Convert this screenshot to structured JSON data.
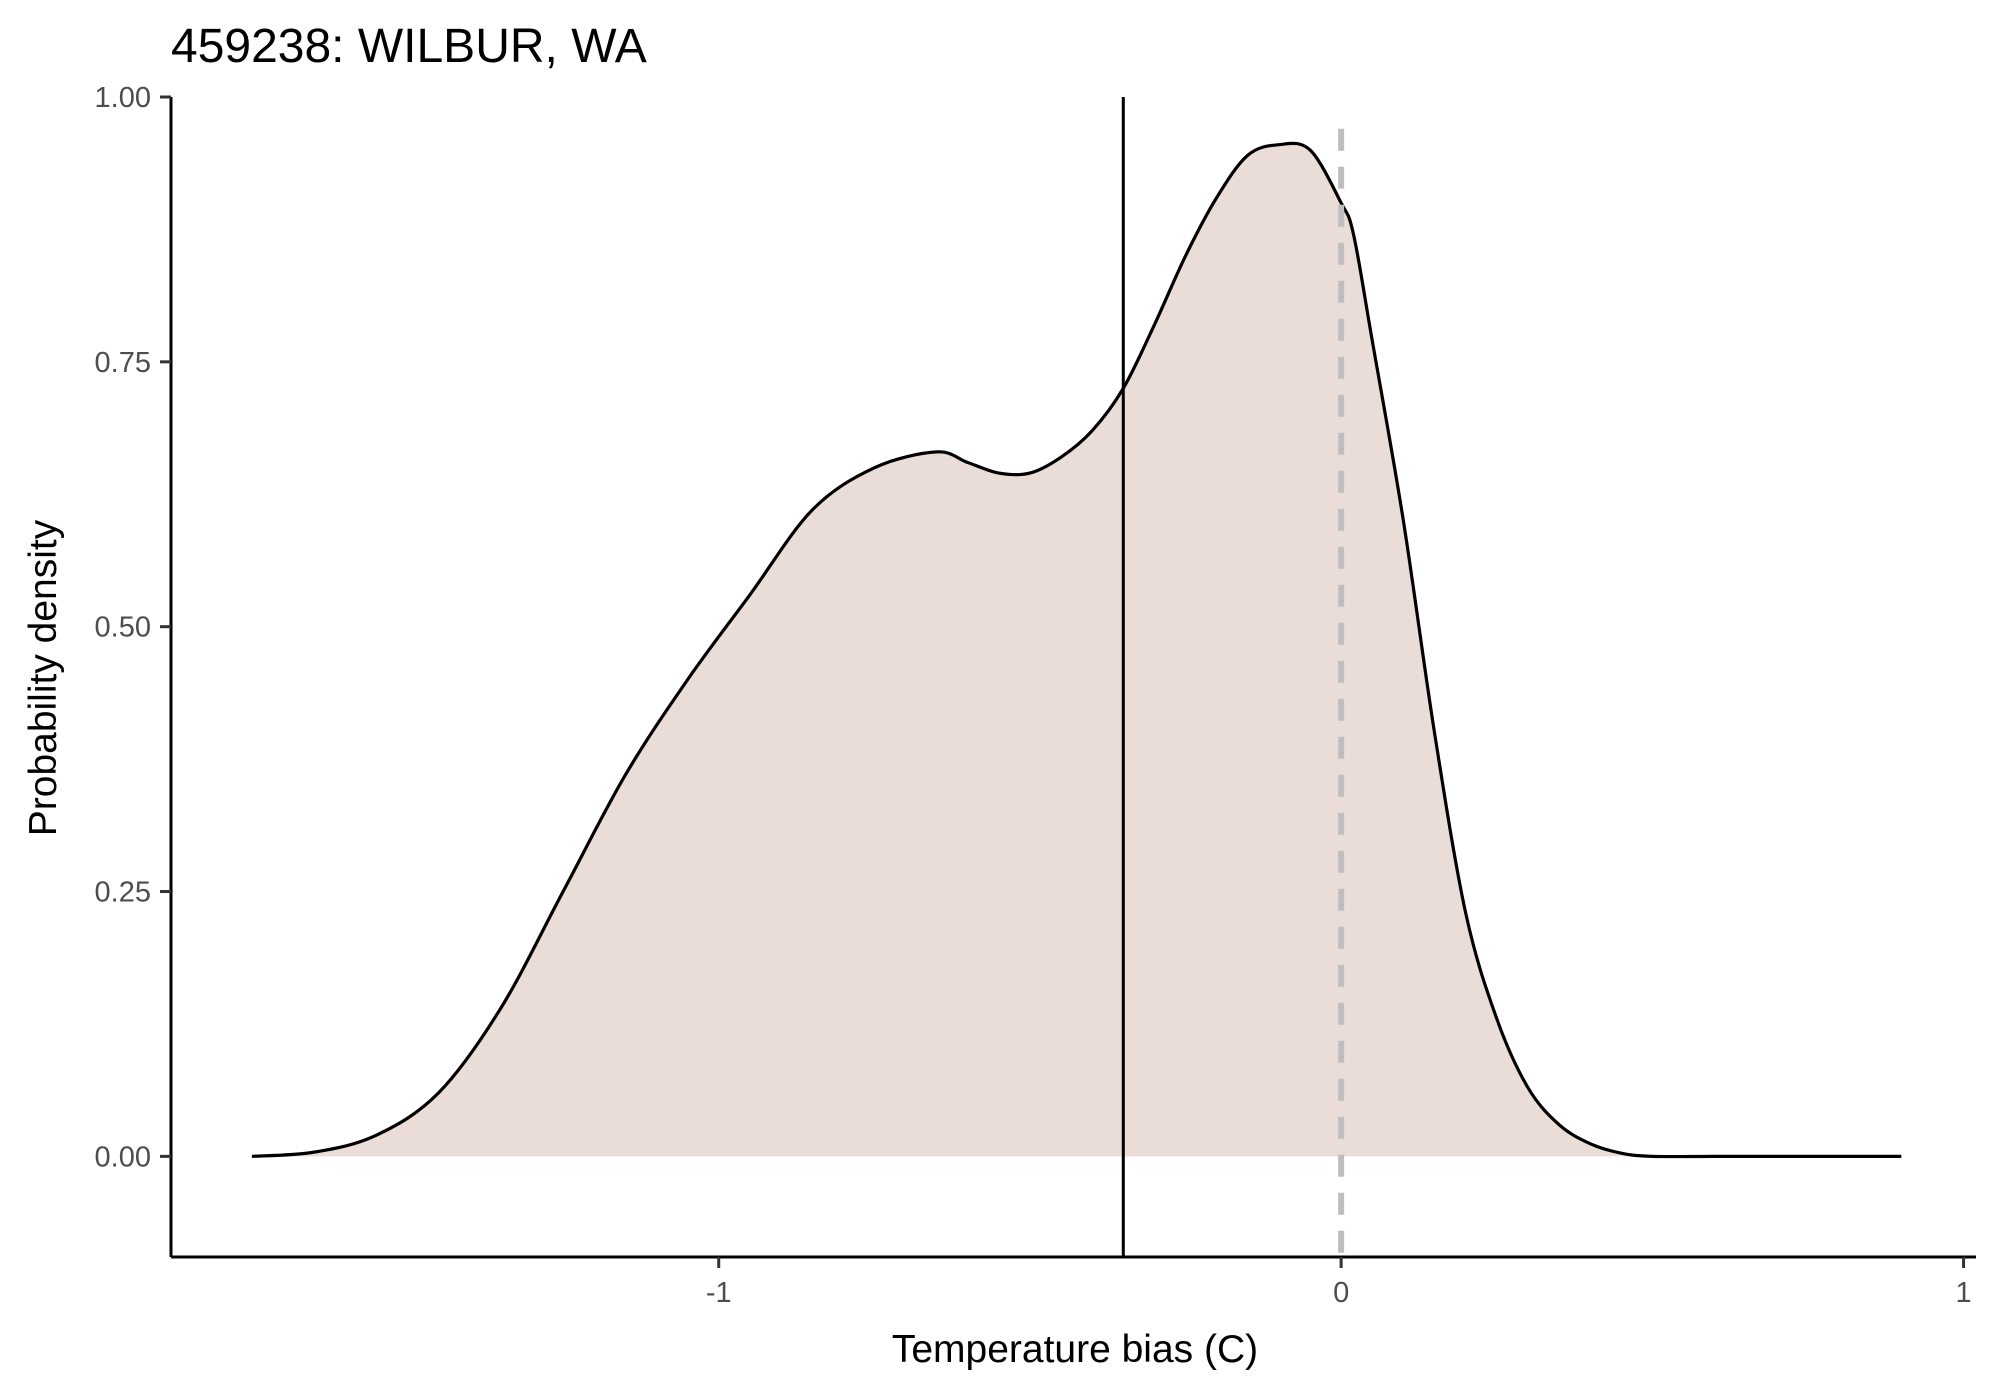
{
  "chart_data": {
    "type": "area",
    "title": "459238: WILBUR, WA",
    "xlabel": "Temperature bias (C)",
    "ylabel": "Probability density",
    "xlim": [
      -1.88,
      1.02
    ],
    "ylim": [
      -0.095,
      1.0
    ],
    "x_ticks": [
      -1,
      0,
      1
    ],
    "x_tick_labels": [
      "-1",
      "0",
      "1"
    ],
    "y_ticks": [
      0,
      0.25,
      0.5,
      0.75,
      1.0
    ],
    "y_tick_labels": [
      "0.00",
      "0.25",
      "0.50",
      "0.75",
      "1.00"
    ],
    "grid": false,
    "legend": "none",
    "series": [
      {
        "x": [
          -1.75,
          -1.65,
          -1.55,
          -1.45,
          -1.35,
          -1.25,
          -1.15,
          -1.05,
          -0.95,
          -0.85,
          -0.75,
          -0.65,
          -0.6,
          -0.55,
          -0.5,
          -0.45,
          -0.4,
          -0.35,
          -0.3,
          -0.25,
          -0.2,
          -0.15,
          -0.1,
          -0.05,
          0.0,
          0.02,
          0.05,
          0.1,
          0.15,
          0.2,
          0.25,
          0.3,
          0.35,
          0.4,
          0.45,
          0.5,
          0.6,
          0.7,
          0.8,
          0.9
        ],
        "y": [
          0.0,
          0.004,
          0.02,
          0.06,
          0.14,
          0.25,
          0.36,
          0.45,
          0.53,
          0.61,
          0.65,
          0.665,
          0.655,
          0.645,
          0.645,
          0.66,
          0.685,
          0.725,
          0.785,
          0.85,
          0.905,
          0.945,
          0.955,
          0.95,
          0.9,
          0.87,
          0.77,
          0.6,
          0.4,
          0.23,
          0.13,
          0.065,
          0.03,
          0.012,
          0.003,
          0.0,
          0.0,
          0.0,
          0.0,
          0.0
        ]
      }
    ],
    "reference_lines": [
      {
        "axis": "x",
        "value": -0.35,
        "style": "solid",
        "color": "#000000"
      },
      {
        "axis": "x",
        "value": 0.0,
        "style": "dashed",
        "color": "#bebebe"
      }
    ],
    "fill_color": "#eaddd8",
    "line_color": "#000000"
  }
}
